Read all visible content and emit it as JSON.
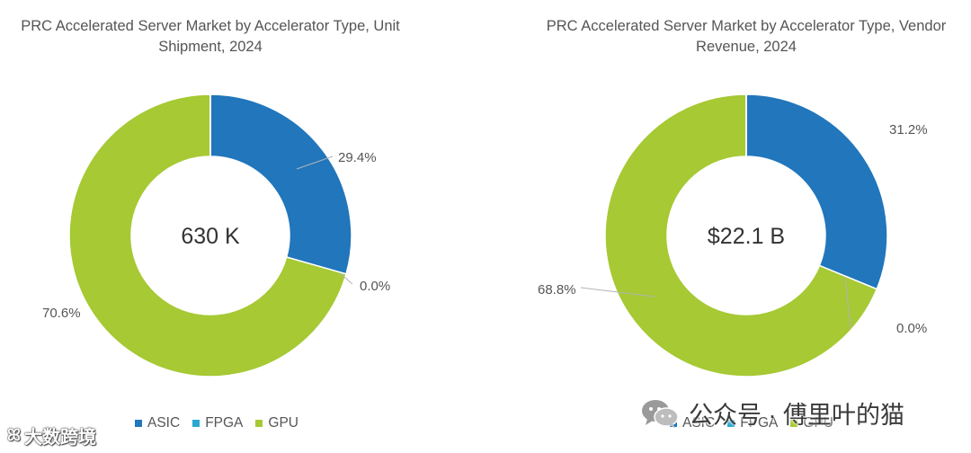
{
  "chart_data": [
    {
      "type": "donut",
      "title": "PRC Accelerated Server Market by Accelerator Type, Unit\nShipment, 2024",
      "center_label": "630 K",
      "categories": [
        "ASIC",
        "FPGA",
        "GPU"
      ],
      "values": [
        29.4,
        0.0,
        70.6
      ],
      "value_labels": [
        "29.4%",
        "0.0%",
        "70.6%"
      ],
      "unit": "%"
    },
    {
      "type": "donut",
      "title": "PRC Accelerated Server Market by Accelerator Type, Vendor\nRevenue, 2024",
      "center_label": "$22.1 B",
      "categories": [
        "ASIC",
        "FPGA",
        "GPU"
      ],
      "values": [
        31.2,
        0.0,
        68.8
      ],
      "value_labels": [
        "31.2%",
        "0.0%",
        "68.8%"
      ],
      "unit": "%"
    }
  ],
  "legend": {
    "items": [
      {
        "label": "ASIC",
        "color": "#2176BC"
      },
      {
        "label": "FPGA",
        "color": "#29A9D1"
      },
      {
        "label": "GPU",
        "color": "#A6C934"
      }
    ]
  },
  "colors": {
    "asic": "#2176BC",
    "fpga": "#29A9D1",
    "gpu": "#A6C934",
    "text": "#555555",
    "leader": "#B4B4B4"
  },
  "watermarks": {
    "bottom_left": "大数跨境",
    "bottom_left_icon": "ꕤ",
    "bottom_right": "公众号 · 傅里叶的猫"
  }
}
